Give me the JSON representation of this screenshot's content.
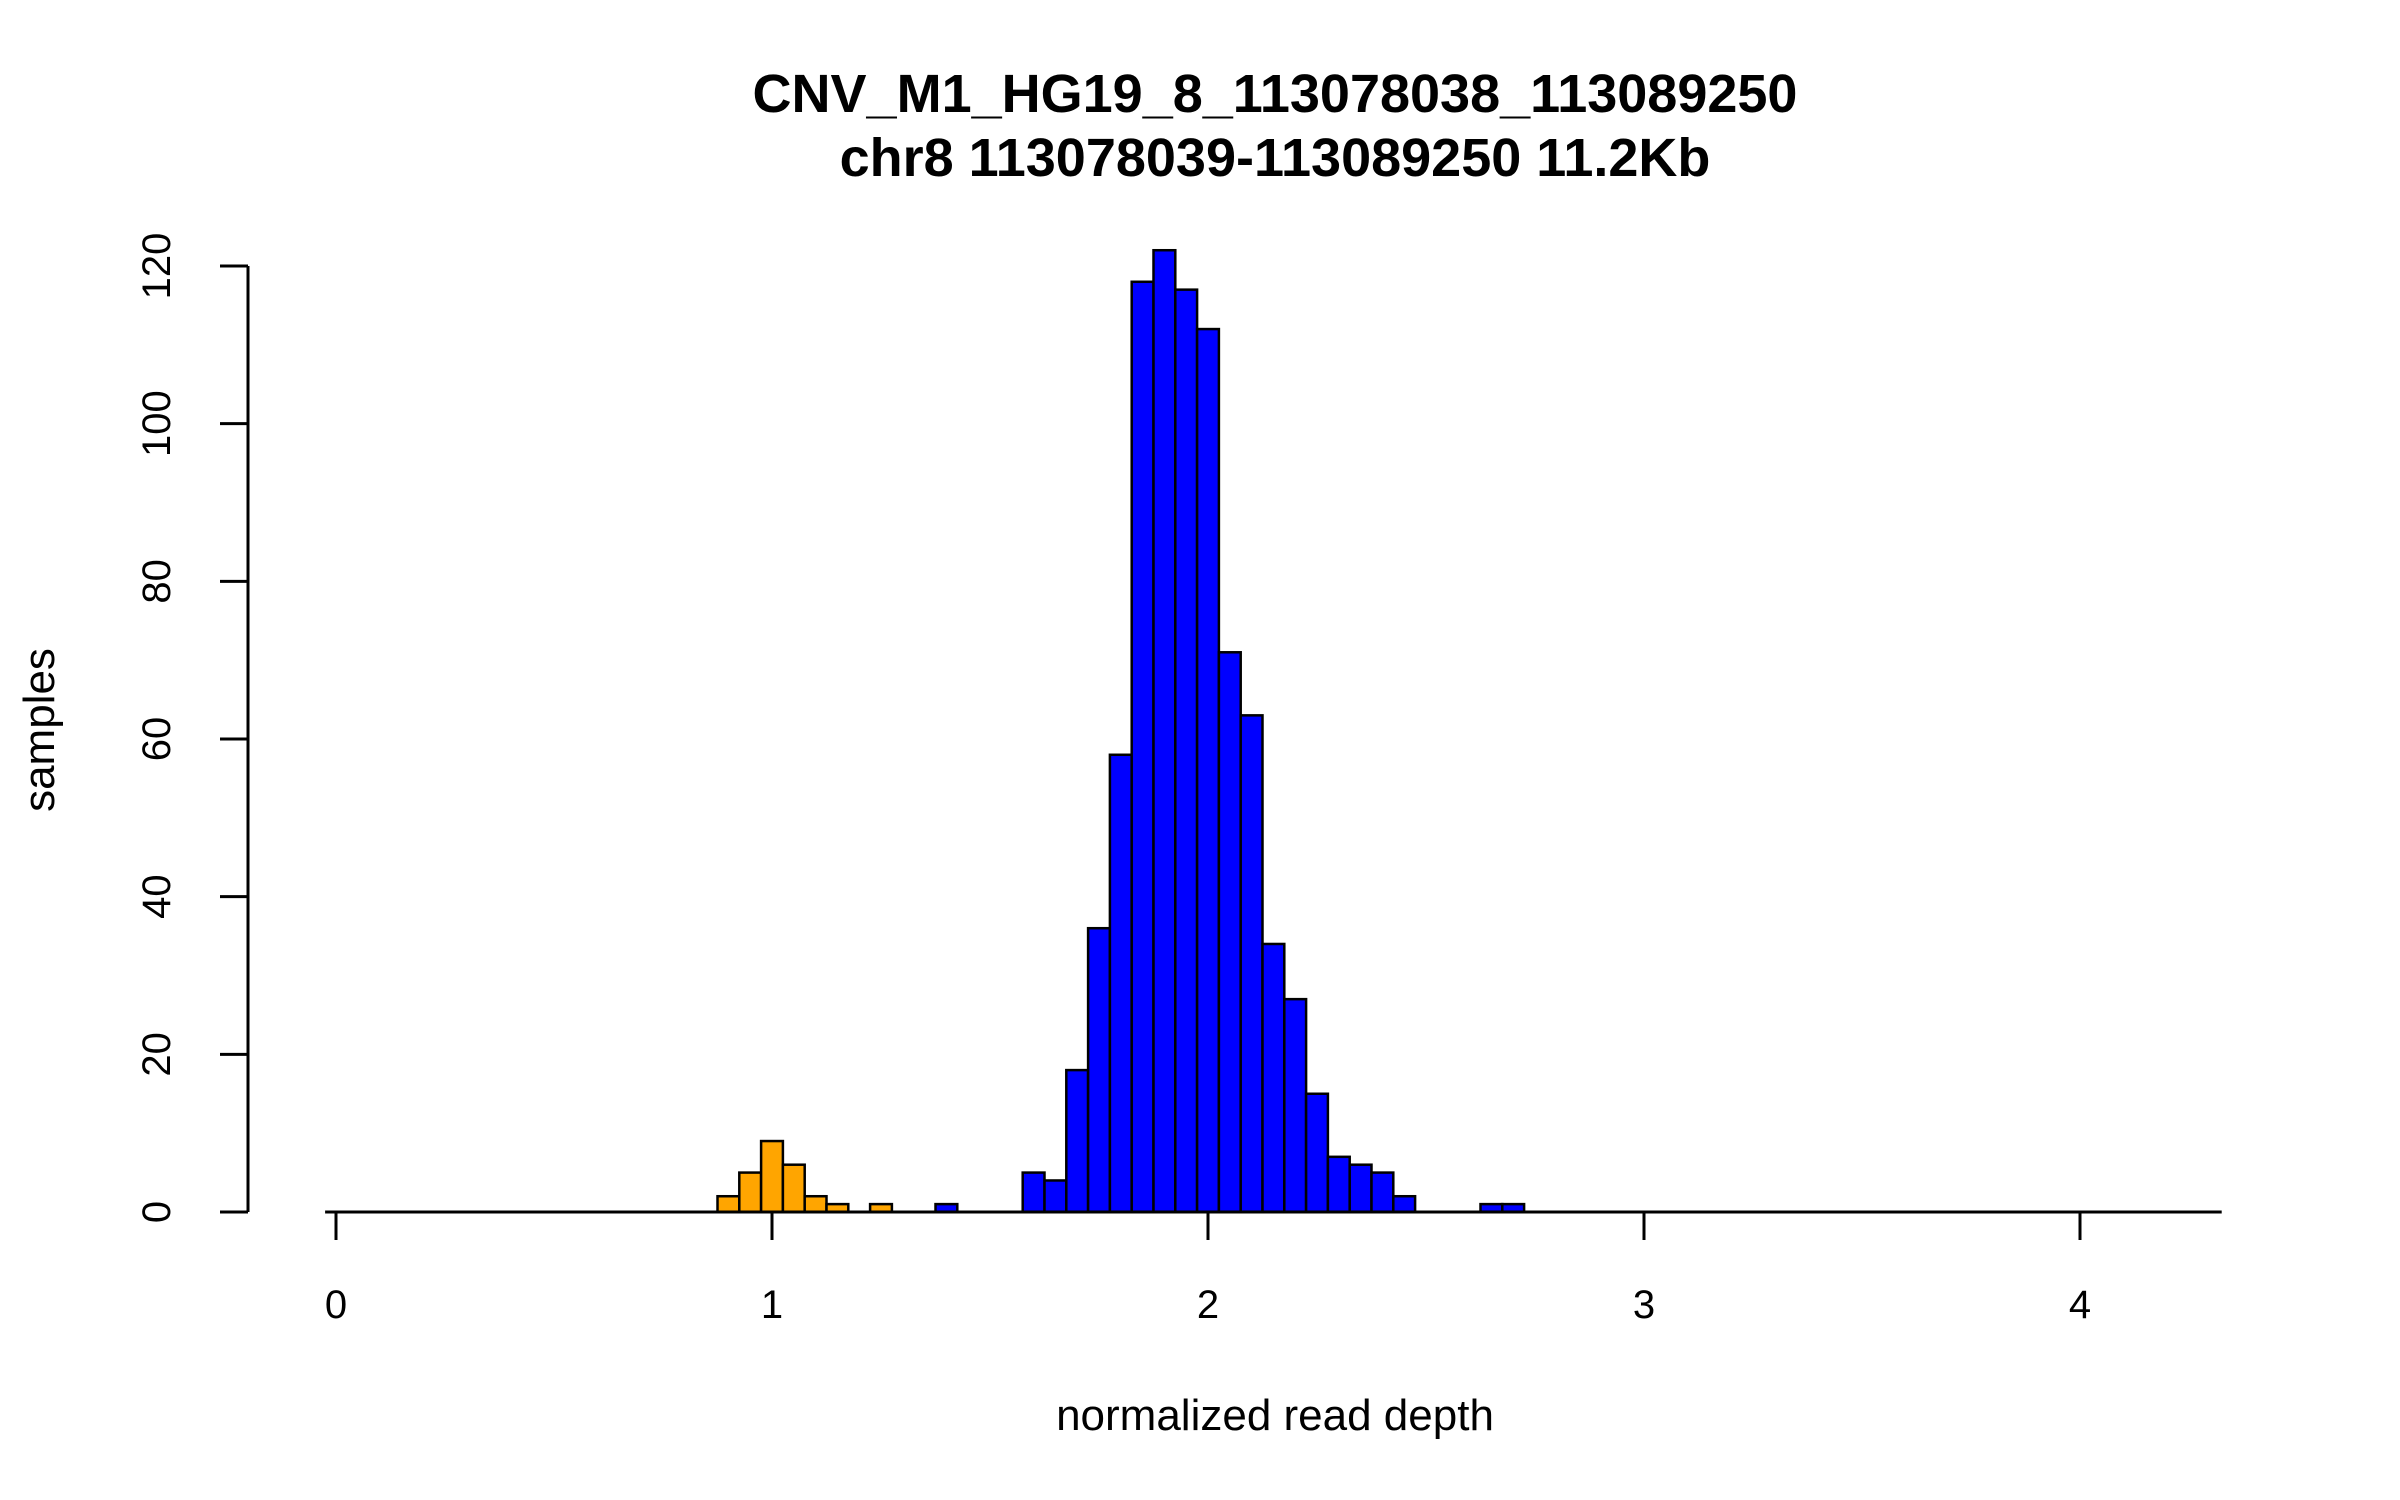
{
  "chart_data": {
    "type": "bar",
    "title": "CNV_M1_HG19_8_113078038_113089250",
    "subtitle": "chr8 113078039-113089250 11.2Kb",
    "xlabel": "normalized read depth",
    "ylabel": "samples",
    "xlim": [
      -0.05,
      4.3
    ],
    "ylim": [
      0,
      120
    ],
    "x_ticks": [
      0,
      1,
      2,
      3,
      4
    ],
    "x_tick_labels": [
      "0",
      "1",
      "2",
      "3",
      "4"
    ],
    "y_ticks": [
      0,
      20,
      40,
      60,
      80,
      100,
      120
    ],
    "y_tick_labels": [
      "0",
      "20",
      "40",
      "60",
      "80",
      "100",
      "120"
    ],
    "bin_width": 0.05,
    "baseline": [
      -0.025,
      4.325
    ],
    "colors": {
      "orange": "#ffa500",
      "blue": "#0000ff",
      "stroke": "#000000"
    },
    "series": [
      {
        "name": "orange",
        "color": "#ffa500",
        "bins": [
          {
            "start": 0.875,
            "count": 2
          },
          {
            "start": 0.925,
            "count": 5
          },
          {
            "start": 0.975,
            "count": 9
          },
          {
            "start": 1.025,
            "count": 6
          },
          {
            "start": 1.075,
            "count": 2
          },
          {
            "start": 1.125,
            "count": 1
          },
          {
            "start": 1.225,
            "count": 1
          }
        ]
      },
      {
        "name": "blue",
        "color": "#0000ff",
        "bins": [
          {
            "start": 1.375,
            "count": 1
          },
          {
            "start": 1.575,
            "count": 5
          },
          {
            "start": 1.625,
            "count": 4
          },
          {
            "start": 1.675,
            "count": 18
          },
          {
            "start": 1.725,
            "count": 36
          },
          {
            "start": 1.775,
            "count": 58
          },
          {
            "start": 1.825,
            "count": 118
          },
          {
            "start": 1.875,
            "count": 122
          },
          {
            "start": 1.925,
            "count": 117
          },
          {
            "start": 1.975,
            "count": 112
          },
          {
            "start": 2.025,
            "count": 71
          },
          {
            "start": 2.075,
            "count": 63
          },
          {
            "start": 2.125,
            "count": 34
          },
          {
            "start": 2.175,
            "count": 27
          },
          {
            "start": 2.225,
            "count": 15
          },
          {
            "start": 2.275,
            "count": 7
          },
          {
            "start": 2.325,
            "count": 6
          },
          {
            "start": 2.375,
            "count": 5
          },
          {
            "start": 2.425,
            "count": 2
          },
          {
            "start": 2.625,
            "count": 1
          },
          {
            "start": 2.675,
            "count": 1
          }
        ]
      }
    ]
  }
}
